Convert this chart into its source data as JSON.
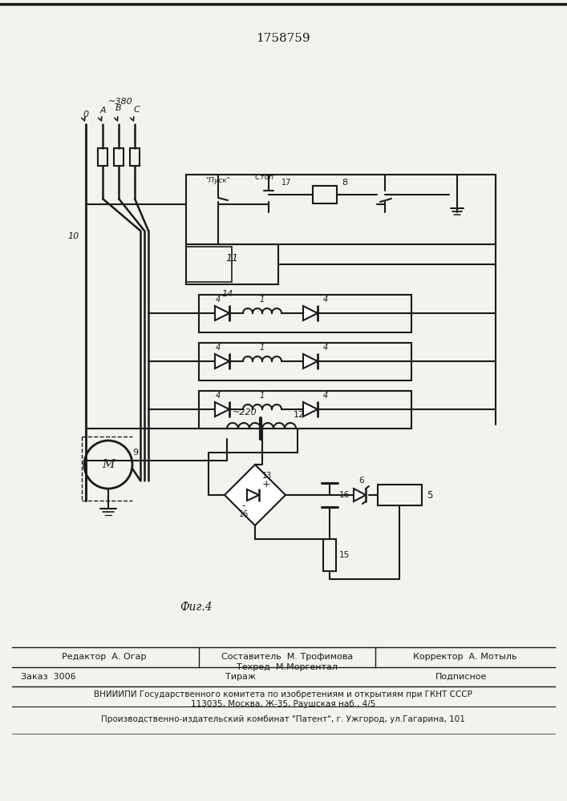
{
  "title": "1758759",
  "background_color": "#f2f2ee",
  "line_color": "#1a1a1a",
  "fig_caption": "Фиг.4",
  "supply_voltage": "~380",
  "secondary_voltage": "~220",
  "supply_labels": [
    "0",
    "A",
    "B",
    "C"
  ],
  "label_pusk": "\"Пуск\"",
  "label_stop": "\"Стоп\"",
  "num_10": "10",
  "num_11": "11",
  "num_14": "14",
  "num_8": "8",
  "num_17": "17",
  "num_4": "4",
  "num_1": "1",
  "num_9": "9",
  "num_12": "12",
  "num_13": "13",
  "num_15": "15",
  "num_16": "16",
  "num_6": "6",
  "num_5": "5",
  "editor_line": "Редактор  А. Огар",
  "composer_line": "Составитель  М. Трофимова",
  "tech_line": "Техред  М.Моргентал",
  "corrector_line": "Корректор  А. Мотыль",
  "order_line": "Заказ  3006",
  "tirazh_line": "Тираж",
  "podpisnoe_line": "Подписное",
  "vniiipi_line": "ВНИИИПИ Государственного комитета по изобретениям и открытиям при ГКНТ СССР",
  "address_line": "113035, Москва, Ж-35, Раушская наб., 4/5",
  "production_line": "Производственно-издательский комбинат \"Патент\", г. Ужгород, ул.Гагарина, 101"
}
